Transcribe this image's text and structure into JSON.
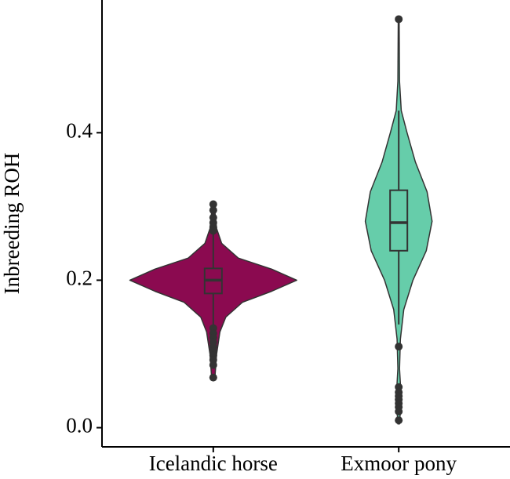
{
  "chart_data": {
    "type": "violin",
    "y_label": "Inbreeding ROH",
    "categories": [
      "Icelandic horse",
      "Exmoor pony"
    ],
    "ylim": [
      -0.026,
      0.58
    ],
    "yticks": [
      {
        "value": 0,
        "label": "0.0"
      },
      0.2,
      0.4
    ],
    "groups": [
      {
        "color": "#8b0a50",
        "violin": {
          "y": [
            0.068,
            0.1,
            0.13,
            0.15,
            0.17,
            0.185,
            0.2,
            0.215,
            0.23,
            0.25,
            0.27,
            0.303
          ],
          "width": [
            0.02,
            0.04,
            0.08,
            0.15,
            0.35,
            0.7,
            1.0,
            0.7,
            0.3,
            0.1,
            0.04,
            0.01
          ]
        },
        "box": {
          "whisker_low": 0.139,
          "q1": 0.182,
          "median": 0.2,
          "q3": 0.216,
          "whisker_high": 0.262
        },
        "outliers": [
          0.303,
          0.295,
          0.285,
          0.278,
          0.272,
          0.267,
          0.135,
          0.128,
          0.122,
          0.116,
          0.11,
          0.104,
          0.098,
          0.092,
          0.085,
          0.068
        ]
      },
      {
        "color": "#66cdaa",
        "violin": {
          "y": [
            0.005,
            0.04,
            0.08,
            0.12,
            0.16,
            0.2,
            0.24,
            0.28,
            0.32,
            0.36,
            0.4,
            0.43,
            0.47,
            0.554
          ],
          "width": [
            0.01,
            0.03,
            0.01,
            0.02,
            0.06,
            0.17,
            0.33,
            0.4,
            0.34,
            0.2,
            0.1,
            0.03,
            0.01,
            0.005
          ]
        },
        "box": {
          "whisker_low": 0.14,
          "q1": 0.24,
          "median": 0.278,
          "q3": 0.322,
          "whisker_high": 0.43
        },
        "outliers": [
          0.554,
          0.11,
          0.055,
          0.048,
          0.043,
          0.038,
          0.033,
          0.028,
          0.022,
          0.01
        ]
      }
    ]
  }
}
